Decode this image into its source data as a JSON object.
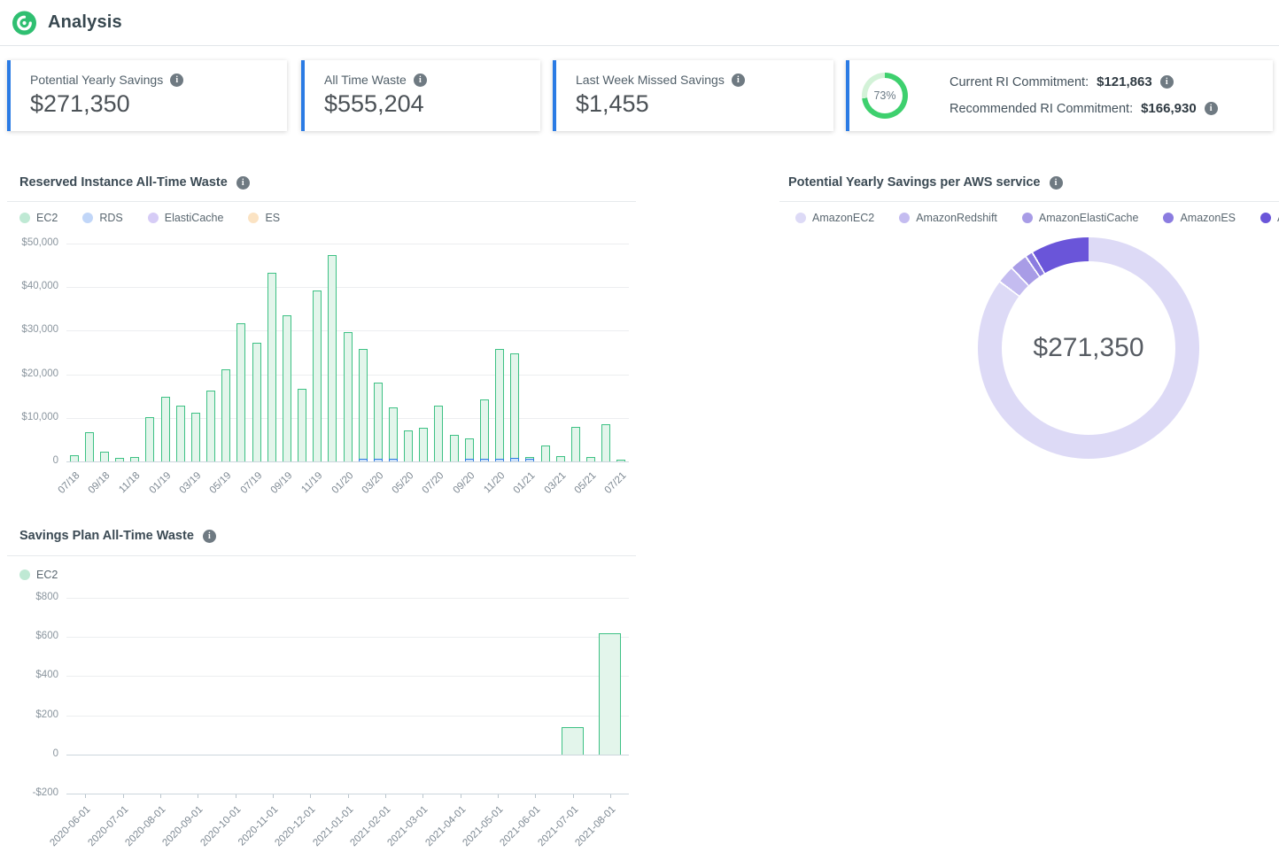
{
  "header": {
    "title": "Analysis",
    "logo": "spot-green-swirl-logo",
    "logo_color": "#2fbf71"
  },
  "cards": [
    {
      "label": "Potential Yearly Savings",
      "value": "$271,350",
      "accent": "#2b7be4"
    },
    {
      "label": "All Time Waste",
      "value": "$555,204",
      "accent": "#2b7be4"
    },
    {
      "label": "Last Week Missed Savings",
      "value": "$1,455",
      "accent": "#2b7be4"
    },
    {
      "percent": "73%",
      "percent_value": 73,
      "ring_color": "#3ed06e",
      "ring_track": "#d3f2d8",
      "current_label": "Current RI Commitment:",
      "current_value": "$121,863",
      "recommended_label": "Recommended RI Commitment:",
      "recommended_value": "$166,930"
    }
  ],
  "chart_data": [
    {
      "type": "bar",
      "title": "Reserved Instance All-Time Waste",
      "legend": [
        {
          "name": "EC2",
          "color": "#bfe9d4"
        },
        {
          "name": "RDS",
          "color": "#c1d6f8"
        },
        {
          "name": "ElastiCache",
          "color": "#d6ccf6"
        },
        {
          "name": "ES",
          "color": "#fbe3c3"
        }
      ],
      "categories": [
        "07/18",
        "08/18",
        "09/18",
        "10/18",
        "11/18",
        "12/18",
        "01/19",
        "02/19",
        "03/19",
        "04/19",
        "05/19",
        "06/19",
        "07/19",
        "08/19",
        "09/19",
        "10/19",
        "11/19",
        "12/19",
        "01/20",
        "02/20",
        "03/20",
        "04/20",
        "05/20",
        "06/20",
        "07/20",
        "08/20",
        "09/20",
        "10/20",
        "11/20",
        "12/20",
        "01/21",
        "02/21",
        "03/21",
        "04/21",
        "05/21",
        "06/21",
        "07/21"
      ],
      "x_tick_labels": [
        "07/18",
        "09/18",
        "11/18",
        "01/19",
        "03/19",
        "05/19",
        "07/19",
        "09/19",
        "11/19",
        "01/20",
        "03/20",
        "05/20",
        "07/20",
        "09/20",
        "11/20",
        "01/21",
        "03/21",
        "05/21",
        "07/21"
      ],
      "series": [
        {
          "name": "EC2",
          "values": [
            1400,
            6700,
            2200,
            800,
            1100,
            10100,
            14900,
            12800,
            11200,
            16200,
            21100,
            31700,
            27200,
            43300,
            33500,
            16700,
            39200,
            47300,
            29700,
            25300,
            17500,
            11800,
            7200,
            7700,
            12800,
            6200,
            4600,
            13700,
            25200,
            23800,
            300,
            3700,
            1200,
            8000,
            1000,
            8500,
            250
          ]
        },
        {
          "name": "RDS",
          "values": [
            0,
            0,
            0,
            0,
            0,
            0,
            0,
            0,
            0,
            0,
            0,
            0,
            0,
            0,
            0,
            0,
            0,
            0,
            0,
            400,
            400,
            300,
            0,
            0,
            0,
            0,
            300,
            400,
            700,
            900,
            700,
            0,
            0,
            0,
            0,
            0,
            0
          ]
        },
        {
          "name": "ElastiCache",
          "values": [
            0,
            0,
            0,
            0,
            0,
            0,
            0,
            0,
            0,
            0,
            0,
            0,
            0,
            0,
            0,
            0,
            0,
            0,
            0,
            0,
            0,
            0,
            0,
            0,
            0,
            0,
            0,
            0,
            0,
            0,
            0,
            0,
            0,
            0,
            0,
            0,
            0
          ]
        },
        {
          "name": "ES",
          "values": [
            0,
            0,
            0,
            0,
            0,
            0,
            0,
            0,
            0,
            0,
            0,
            0,
            0,
            0,
            0,
            0,
            0,
            0,
            0,
            0,
            0,
            0,
            0,
            0,
            0,
            0,
            0,
            0,
            0,
            0,
            0,
            0,
            0,
            0,
            0,
            0,
            0
          ]
        }
      ],
      "ylim": [
        0,
        50000
      ],
      "y_ticks": [
        {
          "value": 50000,
          "label": "$50,000"
        },
        {
          "value": 40000,
          "label": "$40,000"
        },
        {
          "value": 30000,
          "label": "$30,000"
        },
        {
          "value": 20000,
          "label": "$20,000"
        },
        {
          "value": 10000,
          "label": "$10,000"
        },
        {
          "value": 0,
          "label": "0"
        }
      ],
      "grid": true
    },
    {
      "type": "pie",
      "title": "Potential Yearly Savings per AWS service",
      "center_label": "$271,350",
      "segments": [
        {
          "name": "AmazonEC2",
          "value_est": 231000,
          "percent_est": 85.1,
          "color": "#dddaf6"
        },
        {
          "name": "AmazonRedshift",
          "value_est": 7000,
          "percent_est": 2.6,
          "color": "#c4bcf0"
        },
        {
          "name": "AmazonElastiCache",
          "value_est": 7000,
          "percent_est": 2.6,
          "color": "#a89ce6"
        },
        {
          "name": "AmazonES",
          "value_est": 3000,
          "percent_est": 1.1,
          "color": "#8b7ce0"
        },
        {
          "name": "AmazonRDS",
          "value_est": 23350,
          "percent_est": 8.6,
          "color": "#6a55d9"
        }
      ],
      "legend_position": "top"
    },
    {
      "type": "bar",
      "title": "Savings Plan All-Time Waste",
      "legend": [
        {
          "name": "EC2",
          "color": "#bfe9d4"
        }
      ],
      "categories": [
        "2020-06-01",
        "2020-07-01",
        "2020-08-01",
        "2020-09-01",
        "2020-10-01",
        "2020-11-01",
        "2020-12-01",
        "2021-01-01",
        "2021-02-01",
        "2021-03-01",
        "2021-04-01",
        "2021-05-01",
        "2021-06-01",
        "2021-07-01",
        "2021-08-01"
      ],
      "series": [
        {
          "name": "EC2",
          "values": [
            0,
            0,
            0,
            0,
            0,
            0,
            0,
            0,
            0,
            0,
            0,
            0,
            0,
            140,
            620
          ]
        }
      ],
      "ylim": [
        -200,
        800
      ],
      "y_ticks": [
        {
          "value": 800,
          "label": "$800"
        },
        {
          "value": 600,
          "label": "$600"
        },
        {
          "value": 400,
          "label": "$400"
        },
        {
          "value": 200,
          "label": "$200"
        },
        {
          "value": 0,
          "label": "0"
        },
        {
          "value": -200,
          "label": "-$200"
        }
      ],
      "grid": true
    }
  ]
}
